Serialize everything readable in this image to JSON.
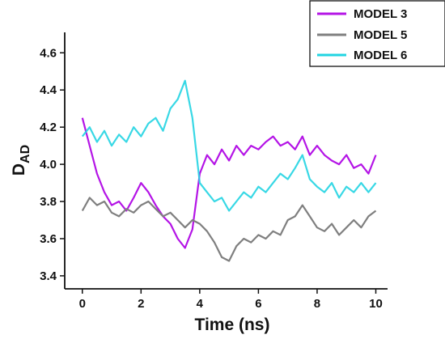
{
  "chart_data": {
    "type": "line",
    "xlabel": "Time (ns)",
    "ylabel_main": "D",
    "ylabel_sub": "AD",
    "xlim": [
      -0.6,
      10.4
    ],
    "ylim": [
      3.33,
      4.71
    ],
    "x_ticks": [
      0,
      2,
      4,
      6,
      8,
      10
    ],
    "y_ticks": [
      3.4,
      3.6,
      3.8,
      4.0,
      4.2,
      4.4,
      4.6
    ],
    "x_tick_labels": [
      "0",
      "2",
      "4",
      "6",
      "8",
      "10"
    ],
    "y_tick_labels": [
      "3.4",
      "3.6",
      "3.8",
      "4.0",
      "4.2",
      "4.4",
      "4.6"
    ],
    "grid": false,
    "legend_position": "top-right",
    "series": [
      {
        "name": "MODEL 3",
        "color": "#b414e6",
        "x": [
          0,
          0.25,
          0.5,
          0.75,
          1,
          1.25,
          1.5,
          1.75,
          2,
          2.25,
          2.5,
          2.75,
          3,
          3.25,
          3.5,
          3.75,
          4,
          4.25,
          4.5,
          4.75,
          5,
          5.25,
          5.5,
          5.75,
          6,
          6.25,
          6.5,
          6.75,
          7,
          7.25,
          7.5,
          7.75,
          8,
          8.25,
          8.5,
          8.75,
          9,
          9.25,
          9.5,
          9.75,
          10
        ],
        "values": [
          4.25,
          4.1,
          3.95,
          3.85,
          3.78,
          3.8,
          3.75,
          3.82,
          3.9,
          3.85,
          3.78,
          3.72,
          3.68,
          3.6,
          3.55,
          3.65,
          3.95,
          4.05,
          4.0,
          4.08,
          4.02,
          4.1,
          4.05,
          4.1,
          4.08,
          4.12,
          4.15,
          4.1,
          4.12,
          4.08,
          4.15,
          4.05,
          4.1,
          4.05,
          4.02,
          4.0,
          4.05,
          3.98,
          4.0,
          3.95,
          4.05
        ]
      },
      {
        "name": "MODEL 5",
        "color": "#7f7f7f",
        "x": [
          0,
          0.25,
          0.5,
          0.75,
          1,
          1.25,
          1.5,
          1.75,
          2,
          2.25,
          2.5,
          2.75,
          3,
          3.25,
          3.5,
          3.75,
          4,
          4.25,
          4.5,
          4.75,
          5,
          5.25,
          5.5,
          5.75,
          6,
          6.25,
          6.5,
          6.75,
          7,
          7.25,
          7.5,
          7.75,
          8,
          8.25,
          8.5,
          8.75,
          9,
          9.25,
          9.5,
          9.75,
          10
        ],
        "values": [
          3.75,
          3.82,
          3.78,
          3.8,
          3.74,
          3.72,
          3.76,
          3.74,
          3.78,
          3.8,
          3.76,
          3.72,
          3.74,
          3.7,
          3.66,
          3.7,
          3.68,
          3.64,
          3.58,
          3.5,
          3.48,
          3.56,
          3.6,
          3.58,
          3.62,
          3.6,
          3.64,
          3.62,
          3.7,
          3.72,
          3.78,
          3.72,
          3.66,
          3.64,
          3.68,
          3.62,
          3.66,
          3.7,
          3.66,
          3.72,
          3.75
        ]
      },
      {
        "name": "MODEL 6",
        "color": "#22d4e2",
        "x": [
          0,
          0.25,
          0.5,
          0.75,
          1,
          1.25,
          1.5,
          1.75,
          2,
          2.25,
          2.5,
          2.75,
          3,
          3.25,
          3.5,
          3.75,
          4,
          4.25,
          4.5,
          4.75,
          5,
          5.25,
          5.5,
          5.75,
          6,
          6.25,
          6.5,
          6.75,
          7,
          7.25,
          7.5,
          7.75,
          8,
          8.25,
          8.5,
          8.75,
          9,
          9.25,
          9.5,
          9.75,
          10
        ],
        "values": [
          4.15,
          4.2,
          4.12,
          4.18,
          4.1,
          4.16,
          4.12,
          4.2,
          4.15,
          4.22,
          4.25,
          4.18,
          4.3,
          4.35,
          4.45,
          4.25,
          3.9,
          3.85,
          3.8,
          3.82,
          3.75,
          3.8,
          3.85,
          3.82,
          3.88,
          3.85,
          3.9,
          3.95,
          3.92,
          3.98,
          4.05,
          3.92,
          3.88,
          3.85,
          3.9,
          3.82,
          3.88,
          3.85,
          3.9,
          3.85,
          3.9
        ]
      }
    ]
  }
}
